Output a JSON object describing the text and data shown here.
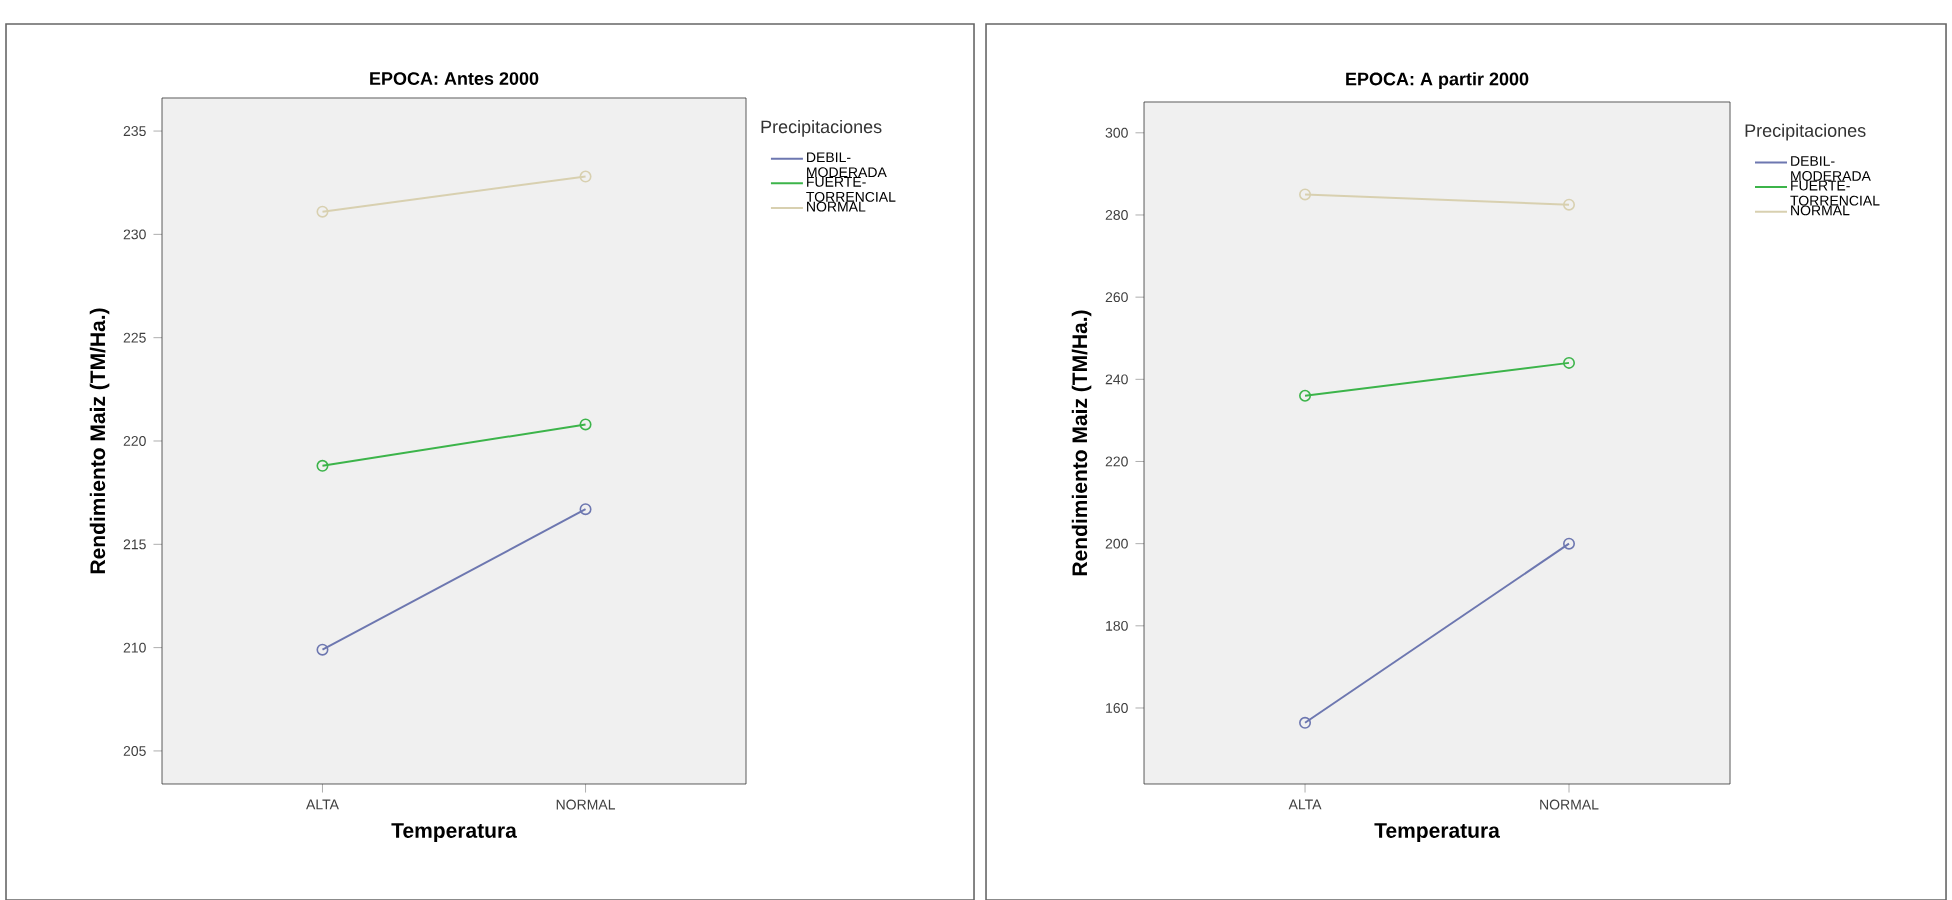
{
  "chart_data": [
    {
      "type": "line",
      "title": "EPOCA: Antes 2000",
      "xlabel": "Temperatura",
      "ylabel": "Rendimiento Maiz (TM/Ha.)",
      "legend_title": "Precipitaciones",
      "categories": [
        "ALTA",
        "NORMAL"
      ],
      "series": [
        {
          "name": "DEBIL-MODERADA",
          "color": "#6d77b0",
          "values": [
            209.9,
            216.7
          ]
        },
        {
          "name": "FUERTE-TORRENCIAL",
          "color": "#3cb44a",
          "values": [
            218.8,
            220.8
          ]
        },
        {
          "name": "NORMAL",
          "color": "#d8d0b0",
          "values": [
            231.1,
            232.8
          ]
        }
      ],
      "ylim": [
        203.4,
        236.6
      ],
      "yticks": [
        205,
        210,
        215,
        220,
        225,
        230,
        235
      ],
      "grid": false,
      "legend": "right",
      "marker": "circle",
      "line_style": "solid"
    },
    {
      "type": "line",
      "title": "EPOCA: A partir 2000",
      "xlabel": "Temperatura",
      "ylabel": "Rendimiento Maiz (TM/Ha.)",
      "legend_title": "Precipitaciones",
      "categories": [
        "ALTA",
        "NORMAL"
      ],
      "series": [
        {
          "name": "DEBIL-MODERADA",
          "color": "#6d77b0",
          "values": [
            156.4,
            200
          ]
        },
        {
          "name": "FUERTE-TORRENCIAL",
          "color": "#3cb44a",
          "values": [
            236,
            244
          ]
        },
        {
          "name": "NORMAL",
          "color": "#d8d0b0",
          "values": [
            285,
            282.5
          ]
        }
      ],
      "ylim": [
        141.5,
        307.5
      ],
      "yticks": [
        160,
        180,
        200,
        220,
        240,
        260,
        280,
        300
      ],
      "grid": false,
      "legend": "right",
      "marker": "circle",
      "line_style": "solid"
    }
  ]
}
